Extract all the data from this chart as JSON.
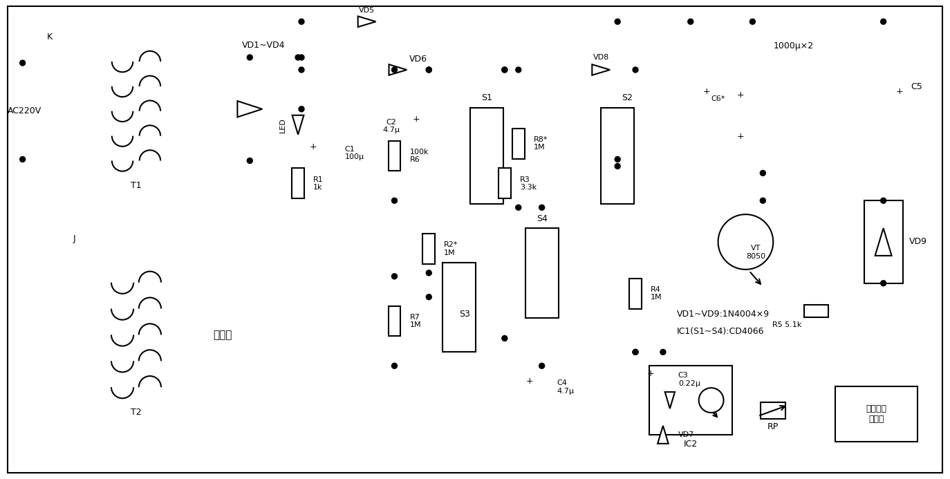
{
  "bg": "#ffffff",
  "lc": "#000000",
  "lw": 1.5,
  "labels": {
    "K": "K",
    "AC220V": "AC220V",
    "J": "J",
    "T1": "T1",
    "T2": "T2",
    "VD1_VD4": "VD1~VD4",
    "LED": "LED",
    "C1": "C1\n100μ",
    "R1": "R1\n1k",
    "VD5": "VD5",
    "VD6": "VD6",
    "C2": "C2\n4.7μ",
    "S1": "S1",
    "R2": "R2*\n1M",
    "R8": "R8*\n1M",
    "S4": "S4",
    "C4": "C4\n4.7μ",
    "S3": "S3",
    "R6": "100k\nR6",
    "R7": "R7\n1M",
    "gongfang": "去功放",
    "R3": "R3\n3.3k",
    "VD8": "VD8",
    "S2": "S2",
    "R4": "R4\n1M",
    "C3": "C3\n0.22μ",
    "VD7": "VD7",
    "VT": "VT\n8050",
    "R5": "R5 5.1k",
    "C6": "C6*",
    "cap1000": "1000μ×2",
    "C5": "C5",
    "VD9": "VD9",
    "IC2": "IC2",
    "RP": "RP",
    "amp": "功放音量\n电位器",
    "note1": "VD1~VD9:1N4004×9",
    "note2": "IC1(S1~S4):CD4066"
  }
}
